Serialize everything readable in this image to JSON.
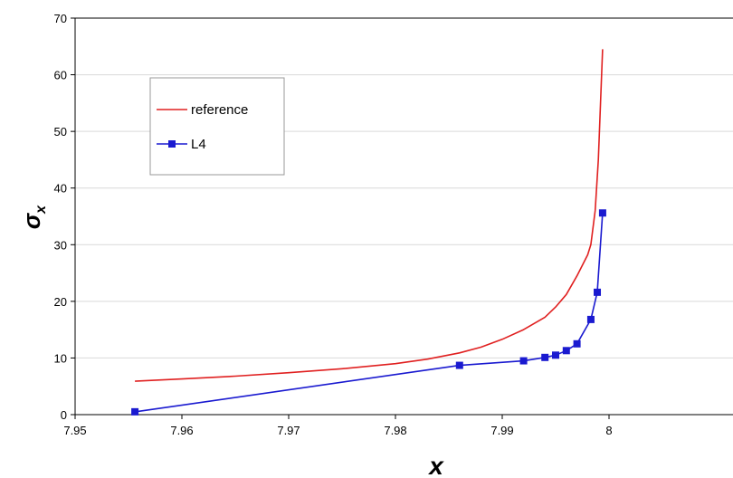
{
  "chart_data": {
    "type": "line",
    "title": "",
    "xlabel": "x",
    "ylabel_main": "σ",
    "ylabel_sub": "x",
    "xlim": [
      7.95,
      8.0
    ],
    "ylim": [
      0,
      70
    ],
    "xticks": [
      7.95,
      7.96,
      7.97,
      7.98,
      7.99,
      8
    ],
    "xtick_labels": [
      "7.95",
      "7.96",
      "7.97",
      "7.98",
      "7.99",
      "8"
    ],
    "yticks": [
      0,
      10,
      20,
      30,
      40,
      50,
      60,
      70
    ],
    "ytick_labels": [
      "0",
      "10",
      "20",
      "30",
      "40",
      "50",
      "60",
      "70"
    ],
    "grid": "horizontal",
    "legend_position": "upper-left",
    "series": [
      {
        "name": "reference",
        "color": "#e02020",
        "marker": "none",
        "x": [
          7.9556,
          7.96,
          7.965,
          7.97,
          7.975,
          7.98,
          7.983,
          7.986,
          7.988,
          7.99,
          7.992,
          7.994,
          7.995,
          7.996,
          7.997,
          7.998,
          7.9983,
          7.9987,
          7.999,
          7.9992,
          7.9994
        ],
        "y": [
          5.9,
          6.3,
          6.8,
          7.4,
          8.1,
          9.0,
          9.8,
          10.9,
          11.9,
          13.3,
          15.0,
          17.2,
          19.0,
          21.2,
          24.5,
          28.2,
          30.0,
          36.0,
          45.0,
          55.0,
          64.5
        ]
      },
      {
        "name": "L4",
        "color": "#1a1ad0",
        "marker": "square",
        "x": [
          7.9556,
          7.986,
          7.992,
          7.994,
          7.995,
          7.996,
          7.997,
          7.9983,
          7.9989,
          7.9994
        ],
        "y": [
          0.5,
          8.7,
          9.5,
          10.1,
          10.5,
          11.3,
          12.5,
          16.8,
          21.6,
          35.6
        ]
      }
    ]
  }
}
